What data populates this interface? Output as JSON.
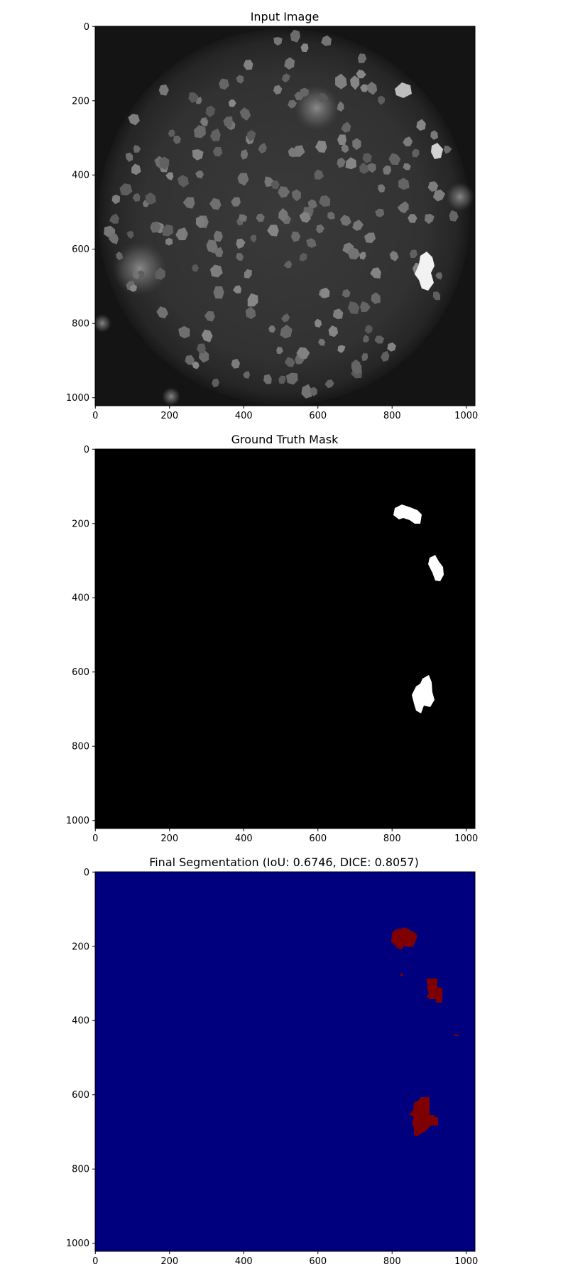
{
  "figure": {
    "panels": [
      {
        "title": "Input Image",
        "x_ticks": [
          "0",
          "200",
          "400",
          "600",
          "800",
          "1000"
        ],
        "y_ticks": [
          "0",
          "200",
          "400",
          "600",
          "800",
          "1000"
        ],
        "colormap": "gray"
      },
      {
        "title": "Ground Truth Mask",
        "x_ticks": [
          "0",
          "200",
          "400",
          "600",
          "800",
          "1000"
        ],
        "y_ticks": [
          "0",
          "200",
          "400",
          "600",
          "800",
          "1000"
        ],
        "colormap": "binary white-on-black"
      },
      {
        "title": "Final Segmentation (IoU: 0.6746, DICE: 0.8057)",
        "x_ticks": [
          "0",
          "200",
          "400",
          "600",
          "800",
          "1000"
        ],
        "y_ticks": [
          "0",
          "200",
          "400",
          "600",
          "800",
          "1000"
        ],
        "colormap": "jet (blue background, dark red foreground)"
      }
    ],
    "colors": {
      "mask_background": "#000000",
      "mask_foreground": "#ffffff",
      "segmentation_background": "#00007f",
      "segmentation_foreground": "#7f0000"
    }
  }
}
